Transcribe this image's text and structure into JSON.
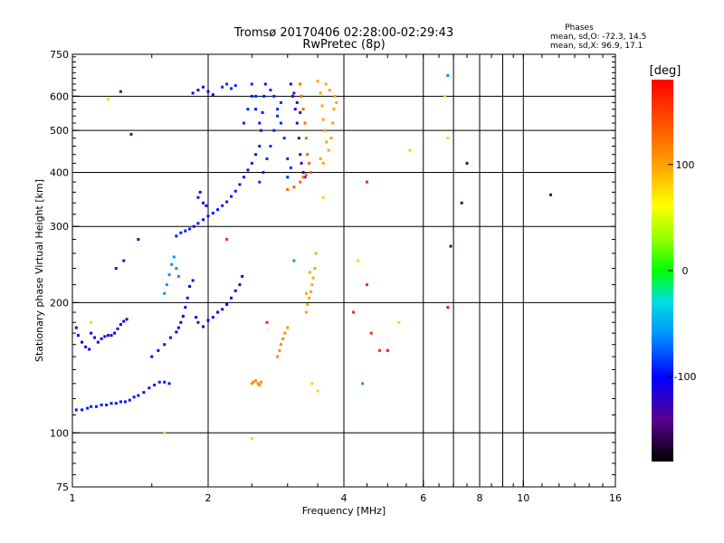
{
  "chart_data": {
    "type": "scatter",
    "title": "Tromsø 20170406 02:28:00-02:29:43",
    "subtitle": "RwPretec (8p)",
    "xlabel": "Frequency [MHz]",
    "ylabel": "Stationary phase Virtual Height [km]",
    "x_scale": "log",
    "y_scale": "log",
    "xlim": [
      1,
      16
    ],
    "ylim": [
      75,
      750
    ],
    "x_ticks": [
      1,
      2,
      4,
      6,
      8,
      10,
      16
    ],
    "y_ticks": [
      75,
      100,
      200,
      300,
      400,
      500,
      600,
      750
    ],
    "grid": true,
    "stats_header": "Phases",
    "stats_o": "mean, sd,O: -72.3, 14.5",
    "stats_x": "mean, sd,X:  96.9, 17.1",
    "colorbar": {
      "label": "[deg]",
      "ticks": [
        100,
        0,
        -100
      ],
      "range": [
        -180,
        180
      ]
    },
    "series": [
      {
        "phase_deg": -95,
        "points": [
          [
            1.02,
            113
          ],
          [
            1.05,
            113
          ],
          [
            1.08,
            114
          ],
          [
            1.1,
            115
          ],
          [
            1.13,
            115
          ],
          [
            1.16,
            116
          ],
          [
            1.19,
            116
          ],
          [
            1.22,
            117
          ],
          [
            1.25,
            117
          ],
          [
            1.28,
            118
          ],
          [
            1.31,
            118
          ],
          [
            1.34,
            119
          ],
          [
            1.37,
            121
          ],
          [
            1.4,
            122
          ],
          [
            1.44,
            124
          ],
          [
            1.48,
            127
          ],
          [
            1.52,
            129
          ],
          [
            1.56,
            131
          ],
          [
            1.6,
            131
          ],
          [
            1.64,
            130
          ]
        ]
      },
      {
        "phase_deg": -110,
        "points": [
          [
            1.02,
            175
          ],
          [
            1.03,
            168
          ],
          [
            1.05,
            162
          ],
          [
            1.07,
            158
          ],
          [
            1.09,
            156
          ],
          [
            1.1,
            170
          ],
          [
            1.12,
            166
          ],
          [
            1.14,
            162
          ],
          [
            1.16,
            165
          ],
          [
            1.18,
            167
          ],
          [
            1.2,
            168
          ],
          [
            1.22,
            168
          ],
          [
            1.24,
            170
          ],
          [
            1.26,
            174
          ],
          [
            1.28,
            178
          ],
          [
            1.3,
            181
          ],
          [
            1.32,
            183
          ]
        ]
      },
      {
        "phase_deg": -105,
        "points": [
          [
            1.5,
            150
          ],
          [
            1.55,
            155
          ],
          [
            1.6,
            160
          ],
          [
            1.65,
            166
          ],
          [
            1.7,
            171
          ],
          [
            1.72,
            175
          ],
          [
            1.74,
            180
          ],
          [
            1.76,
            186
          ],
          [
            1.78,
            195
          ],
          [
            1.8,
            205
          ],
          [
            1.82,
            218
          ],
          [
            1.85,
            225
          ],
          [
            1.88,
            185
          ],
          [
            1.9,
            180
          ],
          [
            1.95,
            176
          ],
          [
            2.0,
            182
          ],
          [
            2.05,
            185
          ],
          [
            2.1,
            190
          ],
          [
            2.15,
            193
          ],
          [
            2.2,
            198
          ],
          [
            2.25,
            205
          ],
          [
            2.3,
            213
          ],
          [
            2.35,
            220
          ],
          [
            2.38,
            230
          ]
        ]
      },
      {
        "phase_deg": -95,
        "points": [
          [
            1.7,
            285
          ],
          [
            1.74,
            290
          ],
          [
            1.78,
            293
          ],
          [
            1.82,
            296
          ],
          [
            1.86,
            300
          ],
          [
            1.9,
            305
          ],
          [
            1.95,
            311
          ],
          [
            2.0,
            317
          ],
          [
            2.05,
            322
          ],
          [
            2.1,
            328
          ],
          [
            2.15,
            335
          ],
          [
            2.2,
            342
          ],
          [
            2.25,
            352
          ],
          [
            2.3,
            362
          ],
          [
            2.35,
            375
          ],
          [
            2.4,
            390
          ],
          [
            2.45,
            405
          ],
          [
            2.5,
            420
          ],
          [
            2.55,
            440
          ],
          [
            2.6,
            460
          ],
          [
            2.62,
            500
          ],
          [
            2.64,
            550
          ],
          [
            2.66,
            600
          ],
          [
            2.68,
            640
          ],
          [
            2.5,
            600
          ],
          [
            2.55,
            560
          ],
          [
            2.6,
            520
          ]
        ]
      },
      {
        "phase_deg": -90,
        "points": [
          [
            2.6,
            380
          ],
          [
            2.65,
            400
          ],
          [
            2.7,
            430
          ],
          [
            2.75,
            460
          ],
          [
            2.8,
            500
          ],
          [
            2.85,
            540
          ],
          [
            2.9,
            580
          ],
          [
            2.75,
            620
          ],
          [
            2.8,
            600
          ],
          [
            2.85,
            560
          ],
          [
            2.9,
            520
          ],
          [
            2.95,
            480
          ],
          [
            3.0,
            430
          ],
          [
            3.0,
            390
          ],
          [
            3.05,
            410
          ],
          [
            2.5,
            640
          ],
          [
            2.55,
            600
          ],
          [
            2.45,
            560
          ],
          [
            2.4,
            520
          ]
        ]
      },
      {
        "phase_deg": -125,
        "points": [
          [
            3.05,
            640
          ],
          [
            3.08,
            600
          ],
          [
            3.12,
            560
          ],
          [
            3.15,
            520
          ],
          [
            3.18,
            480
          ],
          [
            3.2,
            440
          ],
          [
            3.22,
            420
          ],
          [
            3.25,
            400
          ],
          [
            3.28,
            390
          ],
          [
            3.1,
            610
          ],
          [
            3.15,
            580
          ],
          [
            3.2,
            550
          ]
        ]
      },
      {
        "phase_deg": 130,
        "points": [
          [
            3.2,
            640
          ],
          [
            3.22,
            600
          ],
          [
            3.25,
            560
          ],
          [
            3.28,
            520
          ],
          [
            3.3,
            480
          ],
          [
            3.32,
            440
          ],
          [
            3.35,
            420
          ],
          [
            3.38,
            400
          ],
          [
            3.2,
            380
          ],
          [
            3.1,
            370
          ],
          [
            3.0,
            365
          ],
          [
            3.25,
            390
          ],
          [
            3.3,
            395
          ]
        ]
      },
      {
        "phase_deg": 100,
        "points": [
          [
            3.5,
            650
          ],
          [
            3.55,
            610
          ],
          [
            3.58,
            570
          ],
          [
            3.6,
            530
          ],
          [
            3.63,
            500
          ],
          [
            3.66,
            470
          ],
          [
            3.7,
            450
          ],
          [
            3.75,
            480
          ],
          [
            3.78,
            520
          ],
          [
            3.8,
            560
          ],
          [
            3.82,
            600
          ],
          [
            3.6,
            420
          ],
          [
            3.55,
            430
          ],
          [
            3.65,
            640
          ],
          [
            3.72,
            620
          ],
          [
            3.85,
            580
          ]
        ]
      },
      {
        "phase_deg": 100,
        "points": [
          [
            3.3,
            190
          ],
          [
            3.32,
            198
          ],
          [
            3.35,
            205
          ],
          [
            3.38,
            212
          ],
          [
            3.4,
            220
          ],
          [
            3.42,
            228
          ],
          [
            3.45,
            240
          ],
          [
            3.47,
            260
          ],
          [
            3.36,
            235
          ],
          [
            3.3,
            210
          ]
        ]
      },
      {
        "phase_deg": 110,
        "points": [
          [
            2.9,
            160
          ],
          [
            2.93,
            165
          ],
          [
            2.96,
            170
          ],
          [
            3.0,
            175
          ],
          [
            2.88,
            155
          ],
          [
            2.85,
            150
          ]
        ]
      },
      {
        "phase_deg": 110,
        "points": [
          [
            2.5,
            130
          ],
          [
            2.52,
            131
          ],
          [
            2.55,
            132
          ],
          [
            2.58,
            130
          ],
          [
            2.6,
            129
          ],
          [
            2.62,
            131
          ]
        ]
      },
      {
        "phase_deg": -60,
        "points": [
          [
            1.6,
            210
          ],
          [
            1.62,
            220
          ],
          [
            1.64,
            232
          ],
          [
            1.66,
            245
          ],
          [
            1.68,
            255
          ],
          [
            1.7,
            240
          ],
          [
            1.72,
            230
          ]
        ]
      },
      {
        "phase_deg": -110,
        "points": [
          [
            1.85,
            610
          ],
          [
            1.9,
            620
          ],
          [
            1.95,
            630
          ],
          [
            2.0,
            615
          ],
          [
            2.05,
            605
          ]
        ]
      },
      {
        "phase_deg": -120,
        "points": [
          [
            1.9,
            350
          ],
          [
            1.92,
            360
          ],
          [
            1.95,
            340
          ],
          [
            1.98,
            335
          ]
        ]
      },
      {
        "phase_deg": -90,
        "points": [
          [
            2.15,
            630
          ],
          [
            2.2,
            640
          ],
          [
            2.25,
            625
          ],
          [
            2.3,
            635
          ]
        ]
      },
      {
        "phase_deg": -130,
        "points": [
          [
            1.28,
            615
          ],
          [
            1.35,
            490
          ],
          [
            1.4,
            280
          ],
          [
            1.3,
            250
          ],
          [
            1.25,
            240
          ]
        ]
      },
      {
        "phase_deg": 80,
        "points": [
          [
            1.2,
            590
          ],
          [
            1.1,
            180
          ],
          [
            1.6,
            100
          ],
          [
            3.6,
            350
          ],
          [
            5.3,
            180
          ],
          [
            5.6,
            450
          ],
          [
            6.7,
            600
          ],
          [
            6.8,
            480
          ]
        ]
      },
      {
        "phase_deg": 160,
        "points": [
          [
            4.5,
            380
          ],
          [
            4.5,
            220
          ],
          [
            4.2,
            190
          ],
          [
            4.6,
            170
          ],
          [
            4.8,
            155
          ],
          [
            2.2,
            280
          ],
          [
            2.7,
            180
          ]
        ]
      },
      {
        "phase_deg": -150,
        "points": [
          [
            11.5,
            355
          ],
          [
            7.5,
            420
          ],
          [
            7.3,
            340
          ],
          [
            6.9,
            270
          ]
        ]
      },
      {
        "phase_deg": -60,
        "points": [
          [
            6.8,
            670
          ],
          [
            4.4,
            130
          ],
          [
            3.1,
            250
          ]
        ]
      },
      {
        "phase_deg": 80,
        "points": [
          [
            2.5,
            97
          ],
          [
            3.4,
            130
          ],
          [
            3.5,
            125
          ],
          [
            4.3,
            250
          ]
        ]
      },
      {
        "phase_deg": 175,
        "points": [
          [
            5.0,
            155
          ],
          [
            6.8,
            195
          ]
        ]
      }
    ]
  }
}
